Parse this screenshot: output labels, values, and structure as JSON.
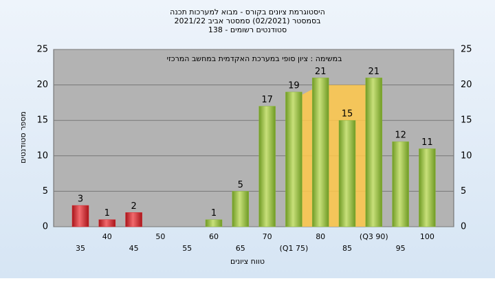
{
  "chart_data": {
    "type": "bar",
    "title": "היסטוגרמת ציונים בקורס - מבוא למערכות תכנה",
    "subtitle": [
      "בסמסטר  (02/2021)  סמסטר אביב 2021/22",
      "סטודנטים רשומים - 138"
    ],
    "annotation": "במשימה : ציון סופי במערכת האקדמית במחשב המרכזי",
    "x_label": "טווח ציונים",
    "y_label": "מספר סטודנטים",
    "categories": [
      "35",
      "40",
      "45",
      "50",
      "55",
      "60",
      "65",
      "70",
      "(Q1 75)",
      "80",
      "85",
      "(Q3 90)",
      "95",
      "100"
    ],
    "values": [
      3,
      1,
      2,
      0,
      0,
      1,
      5,
      17,
      19,
      21,
      15,
      21,
      12,
      11
    ],
    "colors": [
      "#d8262b",
      "#d8262b",
      "#d8262b",
      "#8cb83c",
      "#8cb83c",
      "#8cb83c",
      "#8cb83c",
      "#8cb83c",
      "#8cb83c",
      "#8cb83c",
      "#8cb83c",
      "#8cb83c",
      "#8cb83c",
      "#8cb83c"
    ],
    "band_color": "#ffc84a",
    "ylim": [
      0,
      25
    ],
    "yticks": [
      0,
      5,
      10,
      15,
      20,
      25
    ],
    "y2lim": [
      0,
      25
    ],
    "y2ticks": [
      0,
      5,
      10,
      15,
      20,
      25
    ],
    "grid": true
  }
}
